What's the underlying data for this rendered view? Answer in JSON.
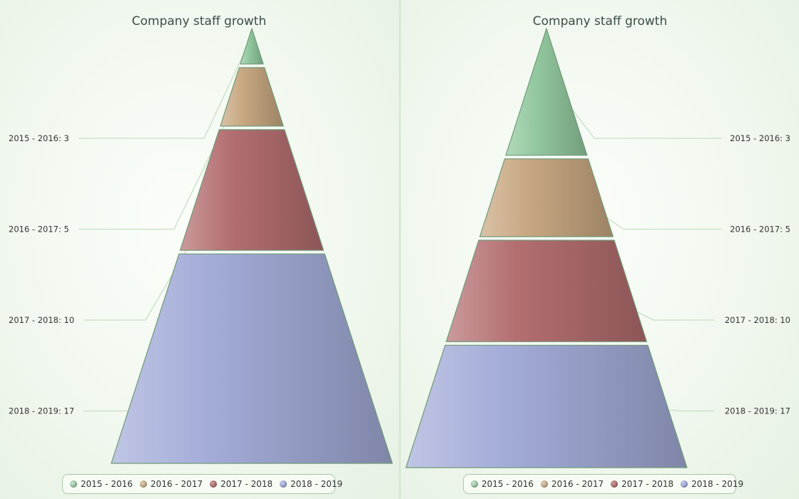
{
  "colors": {
    "series": [
      "#94c9a0",
      "#c8a882",
      "#b36e70",
      "#a3acd8"
    ],
    "outline": "#6f9a78",
    "connector": "#c9ddc6"
  },
  "chart_data": [
    {
      "type": "pyramid",
      "mode": "height-proportional",
      "title": "Company staff growth",
      "categories": [
        "2015 - 2016",
        "2016 - 2017",
        "2017 - 2018",
        "2018 - 2019"
      ],
      "values": [
        3,
        5,
        10,
        17
      ],
      "data_labels": [
        "2015 - 2016: 3",
        "2016 - 2017: 5",
        "2017 - 2018: 10",
        "2018 - 2019: 17"
      ],
      "label_side": "left",
      "legend": {
        "position": "bottom",
        "items": [
          "2015 - 2016",
          "2016 - 2017",
          "2017 - 2018",
          "2018 - 2019"
        ]
      }
    },
    {
      "type": "pyramid",
      "mode": "area-proportional",
      "title": "Company staff growth",
      "categories": [
        "2015 - 2016",
        "2016 - 2017",
        "2017 - 2018",
        "2018 - 2019"
      ],
      "values": [
        3,
        5,
        10,
        17
      ],
      "data_labels": [
        "2015 - 2016: 3",
        "2016 - 2017: 5",
        "2017 - 2018: 10",
        "2018 - 2019: 17"
      ],
      "label_side": "right",
      "legend": {
        "position": "bottom",
        "items": [
          "2015 - 2016",
          "2016 - 2017",
          "2017 - 2018",
          "2018 - 2019"
        ]
      }
    }
  ]
}
